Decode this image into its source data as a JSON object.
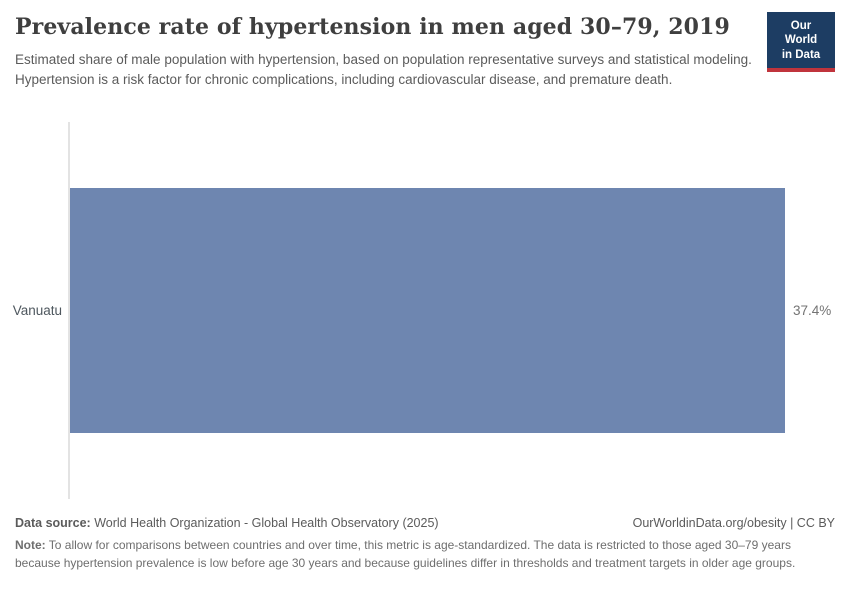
{
  "header": {
    "title": "Prevalence rate of hypertension in men aged 30–79, 2019",
    "subtitle": "Estimated share of male population with hypertension, based on population representative surveys and statistical modeling. Hypertension is a risk factor for chronic complications, including cardiovascular disease, and premature death.",
    "logo": {
      "line1": "Our World",
      "line2": "in Data"
    }
  },
  "chart_data": {
    "type": "bar",
    "orientation": "horizontal",
    "title": "Prevalence rate of hypertension in men aged 30–79, 2019",
    "categories": [
      "Vanuatu"
    ],
    "values": [
      37.4
    ],
    "value_labels": [
      "37.4%"
    ],
    "unit": "%",
    "xlim": [
      0,
      37.4
    ],
    "grid": false,
    "legend": false,
    "bar_color": "#6e86b0"
  },
  "footer": {
    "data_source_label": "Data source:",
    "data_source_value": " World Health Organization - Global Health Observatory (2025)",
    "link_text": "OurWorldinData.org/obesity | CC BY",
    "note_label": "Note:",
    "note_text": " To allow for comparisons between countries and over time, this metric is age-standardized. The data is restricted to those aged 30–79 years because hypertension prevalence is low before age 30 years and because guidelines differ in thresholds and treatment targets in older age groups."
  },
  "colors": {
    "bar": "#6e86b0",
    "logo_navy": "#1d3d63",
    "logo_red": "#c0343c",
    "axis_line": "#e3e3e3",
    "title_text": "#3f3f3f",
    "subtitle_text": "#5b5b5b"
  }
}
